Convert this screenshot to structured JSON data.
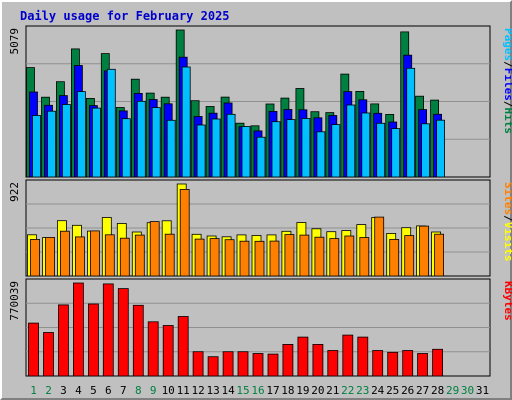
{
  "chart_data": {
    "type": "bar",
    "title": "Daily usage for February 2025",
    "categories": [
      "1",
      "2",
      "3",
      "4",
      "5",
      "6",
      "7",
      "8",
      "9",
      "10",
      "11",
      "12",
      "13",
      "14",
      "15",
      "16",
      "17",
      "18",
      "19",
      "20",
      "21",
      "22",
      "23",
      "24",
      "25",
      "26",
      "27",
      "28",
      "29",
      "30",
      "31"
    ],
    "weekend_days": [
      "1",
      "2",
      "8",
      "9",
      "15",
      "16",
      "22",
      "23",
      "29",
      "30"
    ],
    "panels": [
      {
        "ymax_label": "5079",
        "ylim": [
          0,
          5079
        ],
        "legend": [
          "Pages",
          "/",
          "Files",
          "/",
          "Hits"
        ],
        "legend_colors": [
          "#00c0ff",
          "#000000",
          "#0000ff",
          "#000000",
          "#008040"
        ],
        "series": [
          {
            "name": "Hits",
            "color": "#008040",
            "values": [
              3779,
              2758,
              3292,
              4427,
              2716,
              4264,
              2403,
              3380,
              2900,
              2757,
              5079,
              2636,
              2436,
              2759,
              1858,
              1770,
              2522,
              2727,
              3058,
              2255,
              2226,
              3554,
              2956,
              2527,
              2163,
              5014,
              2793,
              2656,
              null,
              null,
              null
            ]
          },
          {
            "name": "Files",
            "color": "#0000ff",
            "values": [
              2936,
              2476,
              2814,
              3853,
              2466,
              3665,
              2283,
              2887,
              2679,
              2530,
              4140,
              2092,
              2206,
              2558,
              1739,
              1594,
              2267,
              2332,
              2322,
              2045,
              2126,
              2949,
              2667,
              2201,
              1901,
              4209,
              2329,
              2168,
              null,
              null,
              null
            ]
          },
          {
            "name": "Pages",
            "color": "#00c0ff",
            "values": [
              2126,
              2274,
              2506,
              2949,
              2382,
              3720,
              2013,
              2615,
              2398,
              1958,
              3800,
              1796,
              2005,
              2166,
              1745,
              1374,
              1909,
              1983,
              2020,
              1562,
              1810,
              2486,
              2211,
              1856,
              1673,
              3757,
              1837,
              1963,
              null,
              null,
              null
            ]
          }
        ]
      },
      {
        "ymax_label": "922",
        "ylim": [
          0,
          922
        ],
        "legend": [
          "Sites",
          "/",
          "Visits"
        ],
        "legend_colors": [
          "#ff8000",
          "#000000",
          "#ffff00"
        ],
        "series": [
          {
            "name": "Visits",
            "color": "#ffff00",
            "values": [
              413,
              385,
              554,
              508,
              450,
              586,
              526,
              441,
              534,
              553,
              922,
              418,
              401,
              393,
              412,
              406,
              412,
              448,
              536,
              473,
              444,
              455,
              515,
              586,
              427,
              484,
              502,
              441,
              null,
              null,
              null
            ]
          },
          {
            "name": "Sites",
            "color": "#ff8000",
            "values": [
              367,
              387,
              449,
              392,
              452,
              413,
              379,
              410,
              545,
              419,
              868,
              370,
              375,
              364,
              349,
              348,
              350,
              415,
              410,
              389,
              375,
              401,
              386,
              590,
              367,
              405,
              500,
              419,
              null,
              null,
              null
            ]
          }
        ]
      },
      {
        "ymax_label": "770039",
        "ylim": [
          0,
          770039
        ],
        "legend": [
          "KBytes"
        ],
        "legend_colors": [
          "#ff0000"
        ],
        "series": [
          {
            "name": "KBytes",
            "color": "#ff0000",
            "values": [
              438000,
              360000,
              589000,
              770039,
              596000,
              763000,
              724000,
              585000,
              449000,
              418000,
              493000,
              201000,
              160000,
              201000,
              201000,
              186000,
              181000,
              262000,
              322000,
              262000,
              211000,
              339000,
              322000,
              211000,
              196000,
              211000,
              186000,
              221000,
              null,
              null,
              null
            ]
          }
        ]
      }
    ]
  }
}
